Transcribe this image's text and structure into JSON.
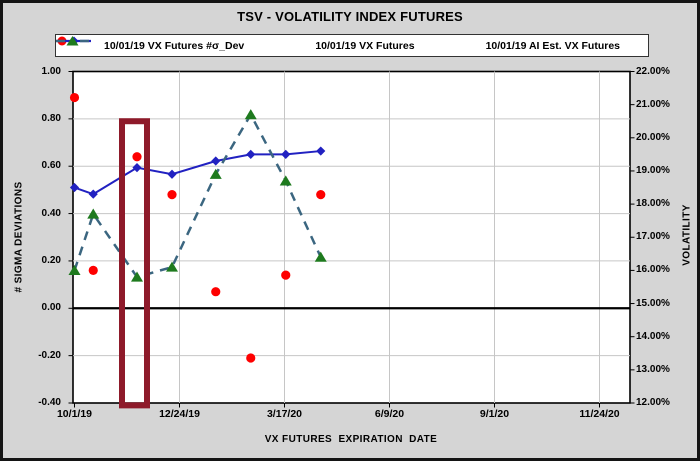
{
  "title": "TSV - VOLATILITY INDEX FUTURES",
  "colors": {
    "background": "#d5d5d5",
    "plot_background": "#ffffff",
    "gridline": "#c6c6c6",
    "axis_line": "#000000",
    "sigma_series": "#fe0000",
    "vx_series": "#2121c1",
    "ai_marker": "#1e7a1e",
    "ai_line": "#3b6680",
    "highlight_box": "#8e1a2a"
  },
  "chart_data": {
    "type": "line",
    "title": "TSV - VOLATILITY INDEX FUTURES",
    "x_axis": {
      "title": "VX FUTURES  EXPIRATION  DATE",
      "ticks": [
        {
          "label": "10/1/19",
          "d": 0
        },
        {
          "label": "12/24/19",
          "d": 84
        },
        {
          "label": "3/17/20",
          "d": 168
        },
        {
          "label": "6/9/20",
          "d": 252
        },
        {
          "label": "9/1/20",
          "d": 336
        },
        {
          "label": "11/24/20",
          "d": 420
        }
      ]
    },
    "left_axis": {
      "title": "# SIGMA DEVIATIONS",
      "min": -0.4,
      "max": 1.0,
      "step": 0.2,
      "ticks": [
        {
          "label": "1.00",
          "v": 1.0
        },
        {
          "label": "0.80",
          "v": 0.8
        },
        {
          "label": "0.60",
          "v": 0.6
        },
        {
          "label": "0.40",
          "v": 0.4
        },
        {
          "label": "0.20",
          "v": 0.2
        },
        {
          "label": "0.00",
          "v": 0.0
        },
        {
          "label": "-0.20",
          "v": -0.2
        },
        {
          "label": "-0.40",
          "v": -0.4
        }
      ]
    },
    "right_axis": {
      "title": "VOLATILITY",
      "min": 12,
      "max": 22,
      "step": 1,
      "ticks": [
        {
          "label": "22.00%",
          "v": 22
        },
        {
          "label": "21.00%",
          "v": 21
        },
        {
          "label": "20.00%",
          "v": 20
        },
        {
          "label": "19.00%",
          "v": 19
        },
        {
          "label": "18.00%",
          "v": 18
        },
        {
          "label": "17.00%",
          "v": 17
        },
        {
          "label": "16.00%",
          "v": 16
        },
        {
          "label": "15.00%",
          "v": 15
        },
        {
          "label": "14.00%",
          "v": 14
        },
        {
          "label": "13.00%",
          "v": 13
        },
        {
          "label": "12.00%",
          "v": 12
        }
      ]
    },
    "x_days": [
      0,
      15,
      50,
      78,
      113,
      141,
      169,
      197
    ],
    "series": [
      {
        "name": "10/01/19 VX Futures #σ_Dev",
        "chart_type": "scatter",
        "marker": "circle",
        "color": "#fe0000",
        "axis": "left",
        "values": [
          0.89,
          0.16,
          0.64,
          0.48,
          0.07,
          -0.21,
          0.14,
          0.48
        ]
      },
      {
        "name": "10/01/19 VX Futures",
        "chart_type": "line",
        "marker": "diamond",
        "color": "#2121c1",
        "axis": "right",
        "values": [
          18.5,
          18.3,
          19.1,
          18.9,
          19.3,
          19.5,
          19.5,
          19.6
        ]
      },
      {
        "name": "10/01/19 AI Est. VX Futures",
        "chart_type": "dashed_line",
        "marker": "triangle",
        "line_color": "#3b6680",
        "marker_color": "#1e7a1e",
        "axis": "right",
        "values": [
          16.0,
          17.7,
          15.8,
          16.1,
          18.9,
          20.7,
          18.7,
          16.4
        ]
      }
    ],
    "annotations": [
      {
        "type": "highlight_rect",
        "color": "#8e1a2a",
        "from_day": 38,
        "to_day": 58,
        "top": 0.79,
        "bottom": -0.41
      }
    ],
    "gridlines": {
      "horizontal_at": [
        0.8,
        0.6,
        0.4,
        0.2,
        -0.2
      ],
      "zero_line": 0.0,
      "vertical_at_days": [
        84,
        168,
        252,
        336,
        420
      ]
    },
    "legend_position": "top"
  }
}
